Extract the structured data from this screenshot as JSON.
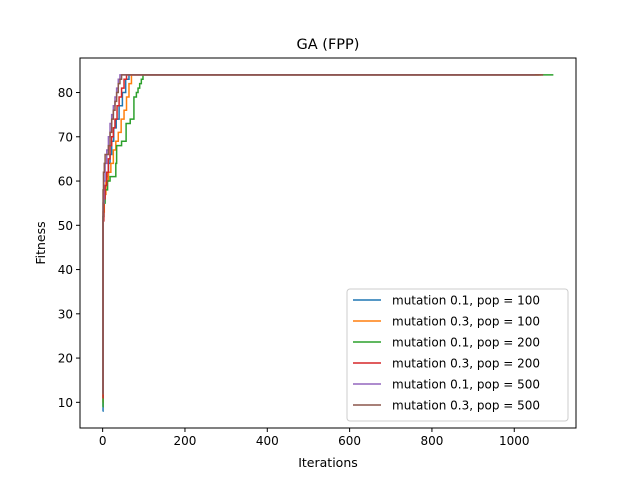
{
  "chart_data": {
    "type": "line",
    "title": "GA (FPP)",
    "xlabel": "Iterations",
    "ylabel": "Fitness",
    "xlim": [
      -55,
      1150
    ],
    "ylim": [
      4.2,
      87.8
    ],
    "xticks": [
      0,
      200,
      400,
      600,
      800,
      1000
    ],
    "yticks": [
      10,
      20,
      30,
      40,
      50,
      60,
      70,
      80
    ],
    "grid": false,
    "legend_position": "lower right",
    "series": [
      {
        "name": "mutation 0.1, pop = 100",
        "color": "#1f77b4",
        "points": [
          [
            0,
            8
          ],
          [
            1,
            52
          ],
          [
            3,
            57
          ],
          [
            6,
            59
          ],
          [
            10,
            61
          ],
          [
            14,
            64
          ],
          [
            18,
            66
          ],
          [
            22,
            69
          ],
          [
            27,
            72
          ],
          [
            33,
            74
          ],
          [
            40,
            77
          ],
          [
            48,
            80
          ],
          [
            56,
            83
          ],
          [
            64,
            84
          ],
          [
            1060,
            84
          ]
        ]
      },
      {
        "name": "mutation 0.3, pop = 100",
        "color": "#ff7f0e",
        "points": [
          [
            0,
            10
          ],
          [
            1,
            53
          ],
          [
            4,
            57
          ],
          [
            8,
            60
          ],
          [
            14,
            62
          ],
          [
            20,
            64
          ],
          [
            26,
            67
          ],
          [
            32,
            69
          ],
          [
            38,
            71
          ],
          [
            45,
            74
          ],
          [
            52,
            76
          ],
          [
            58,
            79
          ],
          [
            64,
            82
          ],
          [
            70,
            84
          ],
          [
            1065,
            84
          ]
        ]
      },
      {
        "name": "mutation 0.1, pop = 200",
        "color": "#2ca02c",
        "points": [
          [
            0,
            9
          ],
          [
            1,
            52
          ],
          [
            3,
            55
          ],
          [
            6,
            58
          ],
          [
            12,
            60
          ],
          [
            18,
            61
          ],
          [
            30,
            61
          ],
          [
            32,
            64
          ],
          [
            34,
            68
          ],
          [
            42,
            68
          ],
          [
            46,
            69
          ],
          [
            55,
            69
          ],
          [
            57,
            73
          ],
          [
            65,
            73
          ],
          [
            67,
            74
          ],
          [
            74,
            74
          ],
          [
            76,
            79
          ],
          [
            80,
            79
          ],
          [
            82,
            80
          ],
          [
            86,
            81
          ],
          [
            90,
            82
          ],
          [
            94,
            83
          ],
          [
            98,
            84
          ],
          [
            1095,
            84
          ]
        ]
      },
      {
        "name": "mutation 0.3, pop = 200",
        "color": "#d62728",
        "points": [
          [
            0,
            11
          ],
          [
            1,
            51
          ],
          [
            3,
            56
          ],
          [
            6,
            59
          ],
          [
            10,
            62
          ],
          [
            14,
            65
          ],
          [
            18,
            68
          ],
          [
            22,
            70
          ],
          [
            26,
            72
          ],
          [
            30,
            74
          ],
          [
            35,
            77
          ],
          [
            40,
            79
          ],
          [
            46,
            81
          ],
          [
            52,
            83
          ],
          [
            58,
            84
          ],
          [
            1070,
            84
          ]
        ]
      },
      {
        "name": "mutation 0.1, pop = 500",
        "color": "#9467bd",
        "points": [
          [
            0,
            12
          ],
          [
            1,
            55
          ],
          [
            3,
            60
          ],
          [
            6,
            64
          ],
          [
            10,
            67
          ],
          [
            14,
            70
          ],
          [
            18,
            73
          ],
          [
            22,
            75
          ],
          [
            26,
            77
          ],
          [
            30,
            79
          ],
          [
            34,
            81
          ],
          [
            38,
            83
          ],
          [
            42,
            84
          ],
          [
            1050,
            84
          ]
        ]
      },
      {
        "name": "mutation 0.3, pop = 500",
        "color": "#8c564b",
        "points": [
          [
            0,
            12
          ],
          [
            1,
            58
          ],
          [
            2,
            62
          ],
          [
            4,
            64
          ],
          [
            6,
            66
          ],
          [
            10,
            66
          ],
          [
            14,
            68
          ],
          [
            18,
            71
          ],
          [
            22,
            74
          ],
          [
            26,
            76
          ],
          [
            30,
            78
          ],
          [
            34,
            80
          ],
          [
            38,
            82
          ],
          [
            42,
            83
          ],
          [
            46,
            84
          ],
          [
            1070,
            84
          ]
        ]
      }
    ]
  }
}
